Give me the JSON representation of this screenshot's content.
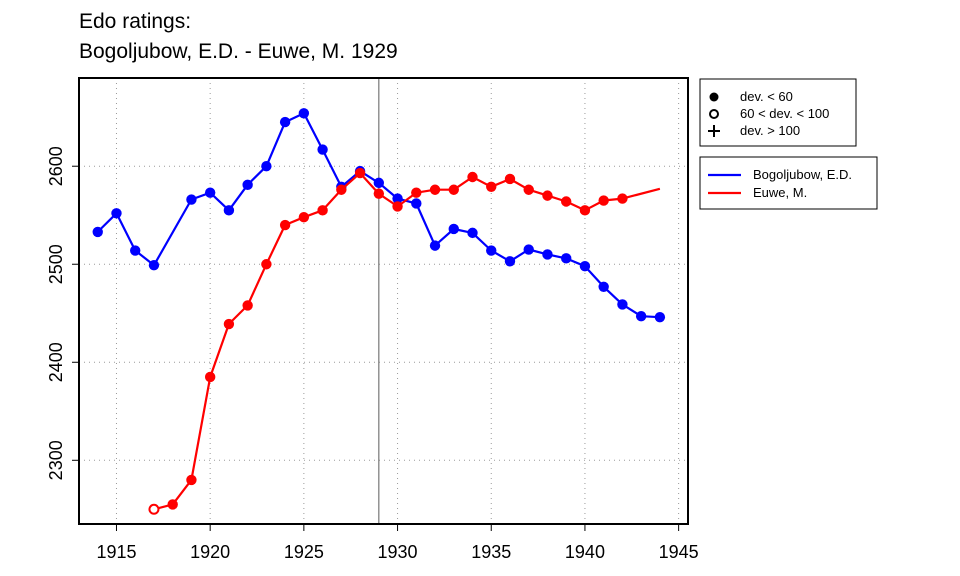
{
  "chart_data": {
    "type": "line",
    "title": "Edo ratings:",
    "subtitle": "Bogoljubow, E.D. - Euwe, M. 1929",
    "xlabel": "",
    "ylabel": "",
    "xlim": [
      1913,
      1945.5
    ],
    "ylim": [
      2235,
      2690
    ],
    "x_ticks": [
      1915,
      1920,
      1925,
      1930,
      1935,
      1940,
      1945
    ],
    "y_ticks": [
      2300,
      2400,
      2500,
      2600
    ],
    "grid": true,
    "marker_line_year": 1929,
    "legend_placement": "outside-right",
    "marker_legend": [
      {
        "symbol": "filled-circle",
        "label": "dev. < 60"
      },
      {
        "symbol": "open-circle",
        "label": "60 < dev. < 100"
      },
      {
        "symbol": "plus",
        "label": "dev. > 100"
      }
    ],
    "series": [
      {
        "name": "Bogoljubow, E.D.",
        "color": "#0000ff",
        "points": [
          {
            "x": 1914,
            "y": 2533,
            "m": "filled"
          },
          {
            "x": 1915,
            "y": 2552,
            "m": "filled"
          },
          {
            "x": 1916,
            "y": 2514,
            "m": "filled"
          },
          {
            "x": 1917,
            "y": 2499,
            "m": "filled"
          },
          {
            "x": 1919,
            "y": 2566,
            "m": "filled"
          },
          {
            "x": 1920,
            "y": 2573,
            "m": "filled"
          },
          {
            "x": 1921,
            "y": 2555,
            "m": "filled"
          },
          {
            "x": 1922,
            "y": 2581,
            "m": "filled"
          },
          {
            "x": 1923,
            "y": 2600,
            "m": "filled"
          },
          {
            "x": 1924,
            "y": 2645,
            "m": "filled"
          },
          {
            "x": 1925,
            "y": 2654,
            "m": "filled"
          },
          {
            "x": 1926,
            "y": 2617,
            "m": "filled"
          },
          {
            "x": 1927,
            "y": 2579,
            "m": "filled"
          },
          {
            "x": 1928,
            "y": 2595,
            "m": "filled"
          },
          {
            "x": 1929,
            "y": 2583,
            "m": "filled"
          },
          {
            "x": 1930,
            "y": 2567,
            "m": "filled"
          },
          {
            "x": 1931,
            "y": 2562,
            "m": "filled"
          },
          {
            "x": 1932,
            "y": 2519,
            "m": "filled"
          },
          {
            "x": 1933,
            "y": 2536,
            "m": "filled"
          },
          {
            "x": 1934,
            "y": 2532,
            "m": "filled"
          },
          {
            "x": 1935,
            "y": 2514,
            "m": "filled"
          },
          {
            "x": 1936,
            "y": 2503,
            "m": "filled"
          },
          {
            "x": 1937,
            "y": 2515,
            "m": "filled"
          },
          {
            "x": 1938,
            "y": 2510,
            "m": "filled"
          },
          {
            "x": 1939,
            "y": 2506,
            "m": "filled"
          },
          {
            "x": 1940,
            "y": 2498,
            "m": "filled"
          },
          {
            "x": 1941,
            "y": 2477,
            "m": "filled"
          },
          {
            "x": 1942,
            "y": 2459,
            "m": "filled"
          },
          {
            "x": 1943,
            "y": 2447,
            "m": "filled"
          },
          {
            "x": 1944,
            "y": 2446,
            "m": "filled"
          }
        ]
      },
      {
        "name": "Euwe, M.",
        "color": "#ff0000",
        "points": [
          {
            "x": 1917,
            "y": 2250,
            "m": "open"
          },
          {
            "x": 1918,
            "y": 2255,
            "m": "filled"
          },
          {
            "x": 1919,
            "y": 2280,
            "m": "filled"
          },
          {
            "x": 1920,
            "y": 2385,
            "m": "filled"
          },
          {
            "x": 1921,
            "y": 2439,
            "m": "filled"
          },
          {
            "x": 1922,
            "y": 2458,
            "m": "filled"
          },
          {
            "x": 1923,
            "y": 2500,
            "m": "filled"
          },
          {
            "x": 1924,
            "y": 2540,
            "m": "filled"
          },
          {
            "x": 1925,
            "y": 2548,
            "m": "filled"
          },
          {
            "x": 1926,
            "y": 2555,
            "m": "filled"
          },
          {
            "x": 1927,
            "y": 2576,
            "m": "filled"
          },
          {
            "x": 1928,
            "y": 2593,
            "m": "filled"
          },
          {
            "x": 1929,
            "y": 2572,
            "m": "filled"
          },
          {
            "x": 1930,
            "y": 2559,
            "m": "filled"
          },
          {
            "x": 1931,
            "y": 2573,
            "m": "filled"
          },
          {
            "x": 1932,
            "y": 2576,
            "m": "filled"
          },
          {
            "x": 1933,
            "y": 2576,
            "m": "filled"
          },
          {
            "x": 1934,
            "y": 2589,
            "m": "filled"
          },
          {
            "x": 1935,
            "y": 2579,
            "m": "filled"
          },
          {
            "x": 1936,
            "y": 2587,
            "m": "filled"
          },
          {
            "x": 1937,
            "y": 2576,
            "m": "filled"
          },
          {
            "x": 1938,
            "y": 2570,
            "m": "filled"
          },
          {
            "x": 1939,
            "y": 2564,
            "m": "filled"
          },
          {
            "x": 1940,
            "y": 2555,
            "m": "filled"
          },
          {
            "x": 1941,
            "y": 2565,
            "m": "filled"
          },
          {
            "x": 1942,
            "y": 2567,
            "m": "filled"
          },
          {
            "x": 1944,
            "y": 2577,
            "m": "none"
          }
        ]
      }
    ]
  }
}
